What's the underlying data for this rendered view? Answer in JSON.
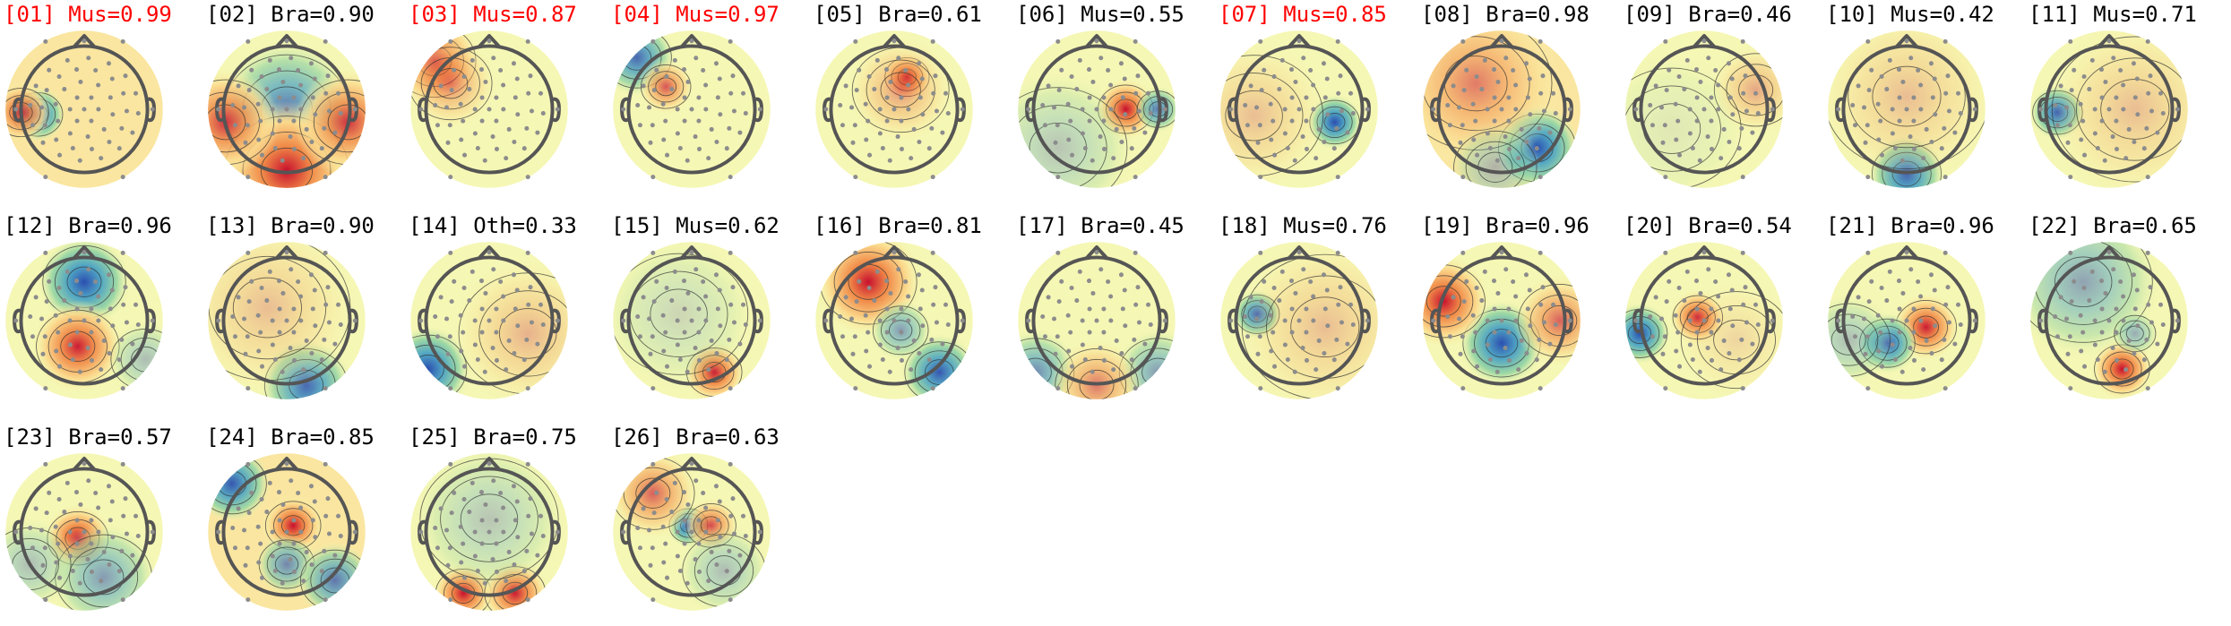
{
  "colors": {
    "flag_text": "#ff0000",
    "normal_text": "#000000",
    "head_outline": "#555555",
    "sensor_dot": "#8c8c8c",
    "contour": "#333333",
    "colormap": [
      "#2c4fb0",
      "#4fa4c4",
      "#9ed8a4",
      "#f5f7b0",
      "#fbd98c",
      "#f08a48",
      "#c8102e"
    ]
  },
  "maps": [
    {
      "index": "[01]",
      "type": "Mus",
      "score": "0.99",
      "flag": true,
      "blobs": [
        [
          -0.72,
          0.08,
          0.18,
          -1.0
        ],
        [
          -0.98,
          0.05,
          0.2,
          0.8
        ]
      ],
      "base": 0.08
    },
    {
      "index": "[02]",
      "type": "Bra",
      "score": "0.90",
      "flag": false,
      "blobs": [
        [
          0.0,
          0.0,
          0.45,
          -0.7
        ],
        [
          0.0,
          0.95,
          0.45,
          1.0
        ],
        [
          -0.95,
          0.2,
          0.35,
          0.8
        ],
        [
          0.95,
          0.2,
          0.35,
          0.8
        ]
      ],
      "base": 0.0
    },
    {
      "index": "[03]",
      "type": "Mus",
      "score": "0.87",
      "flag": true,
      "blobs": [
        [
          -0.85,
          -0.75,
          0.3,
          1.0
        ],
        [
          -0.6,
          -0.4,
          0.3,
          0.4
        ]
      ],
      "base": 0.0
    },
    {
      "index": "[04]",
      "type": "Mus",
      "score": "0.97",
      "flag": true,
      "blobs": [
        [
          -0.85,
          -0.8,
          0.25,
          -0.8
        ],
        [
          -0.4,
          -0.35,
          0.18,
          0.65
        ]
      ],
      "base": 0.05
    },
    {
      "index": "[05]",
      "type": "Bra",
      "score": "0.61",
      "flag": false,
      "blobs": [
        [
          0.2,
          -0.5,
          0.16,
          1.0
        ],
        [
          0.1,
          -0.3,
          0.35,
          0.35
        ]
      ],
      "base": -0.05
    },
    {
      "index": "[06]",
      "type": "Mus",
      "score": "0.55",
      "flag": false,
      "blobs": [
        [
          0.45,
          0.0,
          0.2,
          0.95
        ],
        [
          0.95,
          0.0,
          0.15,
          -0.7
        ],
        [
          -0.6,
          0.6,
          0.5,
          -0.25
        ]
      ],
      "base": 0.0
    },
    {
      "index": "[07]",
      "type": "Mus",
      "score": "0.85",
      "flag": true,
      "blobs": [
        [
          0.55,
          0.2,
          0.18,
          -0.95
        ],
        [
          -0.7,
          0.1,
          0.5,
          0.2
        ]
      ],
      "base": 0.05
    },
    {
      "index": "[08]",
      "type": "Bra",
      "score": "0.98",
      "flag": false,
      "blobs": [
        [
          0.55,
          0.6,
          0.28,
          -1.0
        ],
        [
          -0.4,
          -0.4,
          0.55,
          0.45
        ],
        [
          -0.1,
          0.9,
          0.3,
          -0.3
        ]
      ],
      "base": 0.1
    },
    {
      "index": "[09]",
      "type": "Bra",
      "score": "0.46",
      "flag": false,
      "blobs": [
        [
          0.8,
          -0.3,
          0.3,
          0.3
        ],
        [
          -0.5,
          0.3,
          0.5,
          -0.05
        ]
      ],
      "base": 0.05
    },
    {
      "index": "[10]",
      "type": "Mus",
      "score": "0.42",
      "flag": false,
      "blobs": [
        [
          0.0,
          1.0,
          0.25,
          -1.0
        ],
        [
          0.0,
          -0.2,
          0.6,
          0.2
        ]
      ],
      "base": 0.05
    },
    {
      "index": "[11]",
      "type": "Mus",
      "score": "0.71",
      "flag": false,
      "blobs": [
        [
          -0.8,
          0.05,
          0.18,
          -0.95
        ],
        [
          0.4,
          0.0,
          0.6,
          0.2
        ]
      ],
      "base": 0.05
    },
    {
      "index": "[12]",
      "type": "Bra",
      "score": "0.96",
      "flag": false,
      "blobs": [
        [
          0.0,
          -0.6,
          0.3,
          -1.0
        ],
        [
          -0.1,
          0.4,
          0.3,
          0.9
        ],
        [
          0.95,
          0.6,
          0.25,
          -0.3
        ]
      ],
      "base": 0.0
    },
    {
      "index": "[13]",
      "type": "Bra",
      "score": "0.90",
      "flag": false,
      "blobs": [
        [
          0.3,
          1.0,
          0.3,
          -0.85
        ],
        [
          -0.3,
          -0.2,
          0.6,
          0.2
        ]
      ],
      "base": 0.05
    },
    {
      "index": "[14]",
      "type": "Oth",
      "score": "0.33",
      "flag": false,
      "blobs": [
        [
          -0.95,
          0.75,
          0.28,
          -0.95
        ],
        [
          0.6,
          0.2,
          0.5,
          0.25
        ]
      ],
      "base": 0.05
    },
    {
      "index": "[15]",
      "type": "Mus",
      "score": "0.62",
      "flag": false,
      "blobs": [
        [
          0.35,
          0.8,
          0.2,
          1.0
        ],
        [
          -0.2,
          -0.1,
          0.5,
          -0.15
        ]
      ],
      "base": 0.0
    },
    {
      "index": "[16]",
      "type": "Bra",
      "score": "0.81",
      "flag": false,
      "blobs": [
        [
          -0.4,
          -0.6,
          0.35,
          1.0
        ],
        [
          0.7,
          0.8,
          0.25,
          -0.9
        ],
        [
          0.1,
          0.15,
          0.2,
          -0.5
        ]
      ],
      "base": 0.05
    },
    {
      "index": "[17]",
      "type": "Bra",
      "score": "0.45",
      "flag": false,
      "blobs": [
        [
          -0.95,
          0.8,
          0.28,
          -0.6
        ],
        [
          0.95,
          0.8,
          0.28,
          -0.5
        ],
        [
          0.0,
          1.0,
          0.3,
          0.5
        ]
      ],
      "base": 0.0
    },
    {
      "index": "[18]",
      "type": "Mus",
      "score": "0.76",
      "flag": false,
      "blobs": [
        [
          -0.65,
          -0.1,
          0.16,
          -0.95
        ],
        [
          0.4,
          0.1,
          0.6,
          0.2
        ]
      ],
      "base": 0.05
    },
    {
      "index": "[19]",
      "type": "Bra",
      "score": "0.96",
      "flag": false,
      "blobs": [
        [
          0.0,
          0.35,
          0.28,
          -1.0
        ],
        [
          -0.9,
          -0.3,
          0.3,
          1.0
        ],
        [
          0.9,
          0.0,
          0.3,
          0.6
        ]
      ],
      "base": 0.0
    },
    {
      "index": "[20]",
      "type": "Bra",
      "score": "0.54",
      "flag": false,
      "blobs": [
        [
          -0.1,
          -0.05,
          0.18,
          0.95
        ],
        [
          -1.0,
          0.2,
          0.2,
          -1.0
        ],
        [
          0.5,
          0.3,
          0.4,
          0.1
        ]
      ],
      "base": 0.0
    },
    {
      "index": "[21]",
      "type": "Bra",
      "score": "0.96",
      "flag": false,
      "blobs": [
        [
          0.3,
          0.1,
          0.22,
          0.9
        ],
        [
          -0.3,
          0.35,
          0.2,
          -0.9
        ],
        [
          -0.9,
          0.3,
          0.3,
          -0.3
        ]
      ],
      "base": 0.0
    },
    {
      "index": "[22]",
      "type": "Bra",
      "score": "0.65",
      "flag": false,
      "blobs": [
        [
          0.2,
          0.75,
          0.2,
          1.0
        ],
        [
          -0.4,
          -0.6,
          0.5,
          -0.45
        ],
        [
          0.4,
          0.2,
          0.15,
          -0.4
        ]
      ],
      "base": 0.0
    },
    {
      "index": "[23]",
      "type": "Bra",
      "score": "0.57",
      "flag": false,
      "blobs": [
        [
          -0.1,
          0.1,
          0.22,
          1.0
        ],
        [
          0.3,
          0.7,
          0.35,
          -0.5
        ],
        [
          -0.85,
          0.5,
          0.3,
          -0.3
        ]
      ],
      "base": 0.05
    },
    {
      "index": "[24]",
      "type": "Bra",
      "score": "0.85",
      "flag": false,
      "blobs": [
        [
          0.1,
          -0.1,
          0.2,
          1.0
        ],
        [
          -0.85,
          -0.75,
          0.25,
          -0.9
        ],
        [
          0.0,
          0.5,
          0.2,
          -0.6
        ],
        [
          0.75,
          0.75,
          0.25,
          -0.7
        ]
      ],
      "base": 0.1
    },
    {
      "index": "[25]",
      "type": "Bra",
      "score": "0.75",
      "flag": false,
      "blobs": [
        [
          -0.4,
          0.95,
          0.2,
          1.0
        ],
        [
          0.4,
          0.95,
          0.22,
          0.9
        ],
        [
          0.0,
          -0.2,
          0.5,
          -0.25
        ]
      ],
      "base": 0.0
    },
    {
      "index": "[26]",
      "type": "Bra",
      "score": "0.63",
      "flag": false,
      "blobs": [
        [
          -0.05,
          -0.1,
          0.14,
          -1.0
        ],
        [
          0.3,
          -0.1,
          0.18,
          0.7
        ],
        [
          -0.6,
          -0.6,
          0.3,
          0.6
        ],
        [
          0.5,
          0.6,
          0.3,
          -0.3
        ]
      ],
      "base": 0.0
    }
  ]
}
